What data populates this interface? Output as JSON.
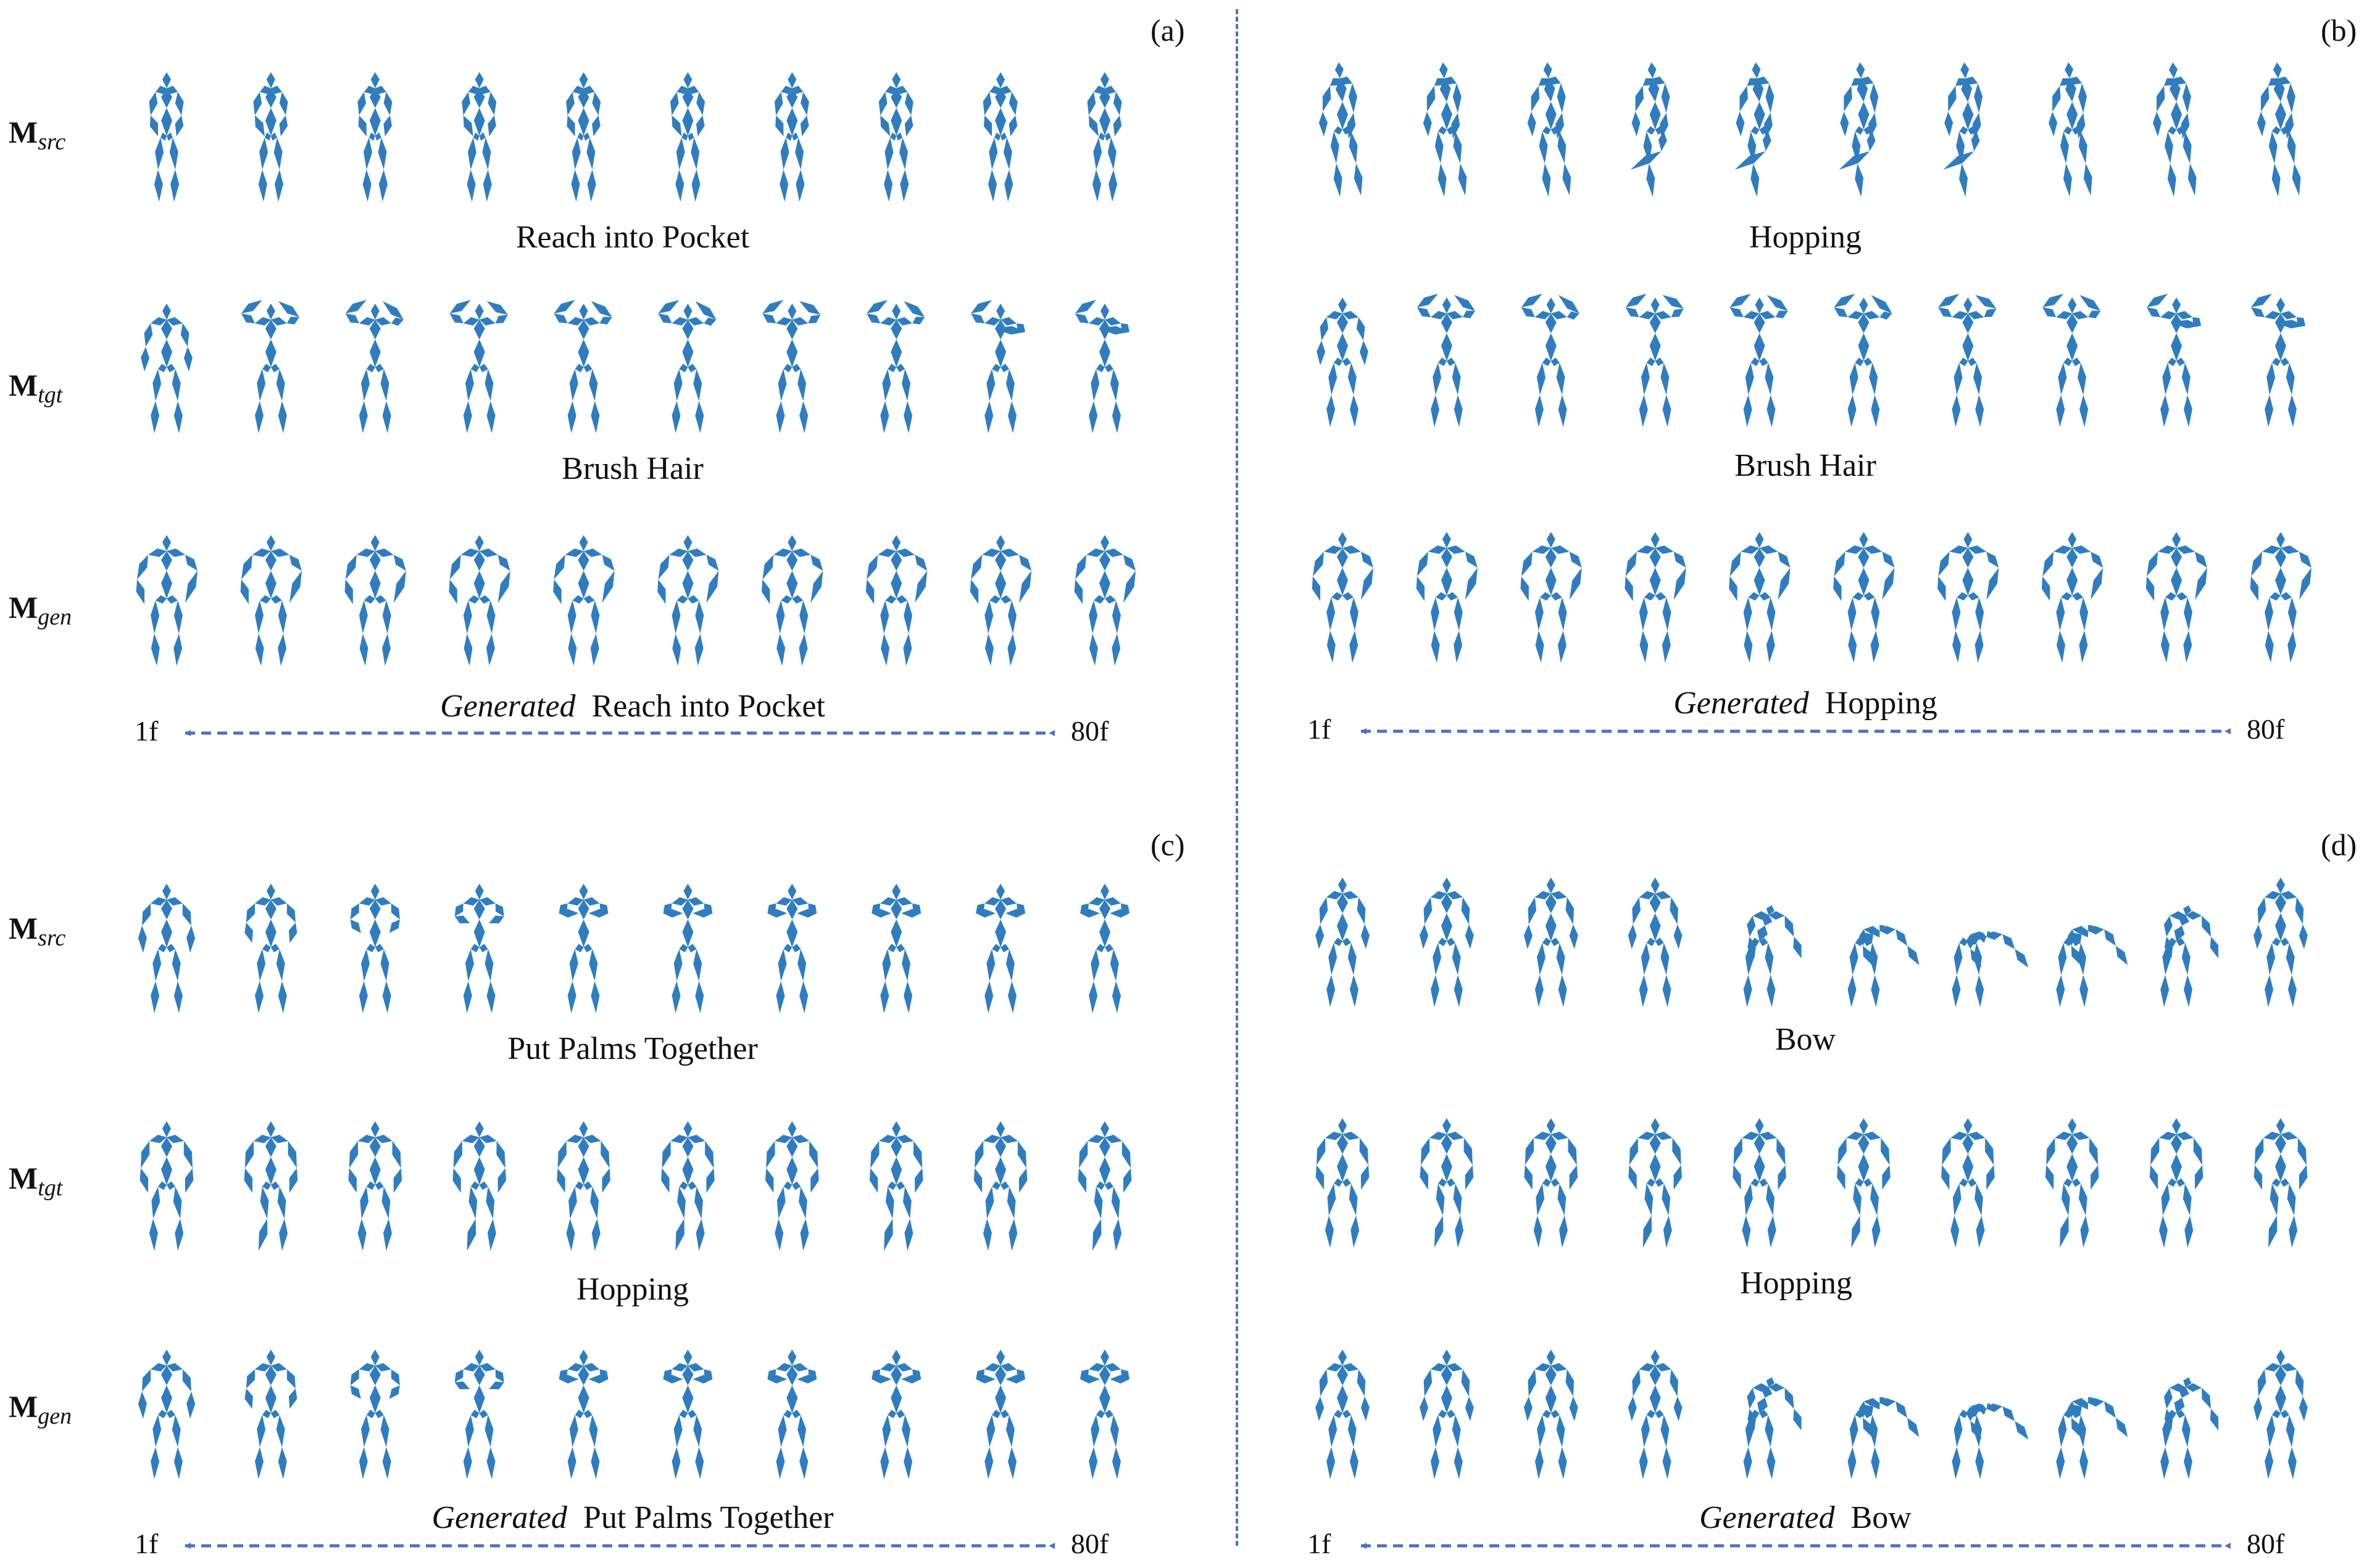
{
  "colors": {
    "skeleton": "#2F7DC0",
    "timeline": "#4A72C4",
    "divider": "#4A72C4",
    "text": "#111111"
  },
  "row_labels": {
    "src": "src",
    "tgt": "tgt",
    "gen": "gen",
    "base": "M"
  },
  "panels": [
    {
      "id": "a",
      "tag": "(a)",
      "src_action": "Reach into Pocket",
      "tgt_action": "Brush Hair",
      "gen_prefix": "Generated",
      "gen_action": "Reach into Pocket",
      "start_frame": "1f",
      "end_frame": "80f"
    },
    {
      "id": "b",
      "tag": "(b)",
      "src_action": "Hopping",
      "tgt_action": "Brush Hair",
      "gen_prefix": "Generated",
      "gen_action": "Hopping",
      "start_frame": "1f",
      "end_frame": "80f"
    },
    {
      "id": "c",
      "tag": "(c)",
      "src_action": "Put Palms Together",
      "tgt_action": "Hopping",
      "gen_prefix": "Generated",
      "gen_action": "Put Palms Together",
      "start_frame": "1f",
      "end_frame": "80f"
    },
    {
      "id": "d",
      "tag": "(d)",
      "src_action": "Bow",
      "tgt_action": "Hopping",
      "gen_prefix": "Generated",
      "gen_action": "Bow",
      "start_frame": "1f",
      "end_frame": "80f"
    }
  ],
  "frames_per_row": 10,
  "row_poses": {
    "a": [
      "reach",
      "brush",
      "wide"
    ],
    "b": [
      "hop",
      "brush",
      "wide"
    ],
    "c": [
      "palms",
      "hopstand",
      "palms"
    ],
    "d": [
      "bow",
      "hopstand",
      "bow"
    ]
  }
}
